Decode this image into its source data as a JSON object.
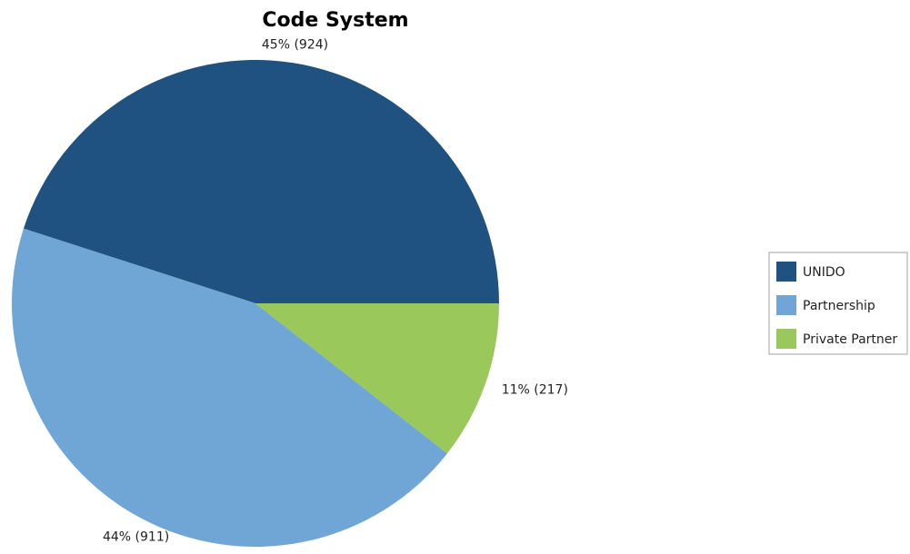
{
  "chart_data": {
    "type": "pie",
    "title": "Code System",
    "legend_position": "right",
    "slices": [
      {
        "name": "UNIDO",
        "value": 924,
        "percent": 45,
        "label": "45% (924)",
        "color": "#1F5280"
      },
      {
        "name": "Partnership",
        "value": 911,
        "percent": 44,
        "label": "44% (911)",
        "color": "#6FA6D5"
      },
      {
        "name": "Private Partner",
        "value": 217,
        "percent": 11,
        "label": "11% (217)",
        "color": "#9BC85A"
      }
    ]
  }
}
